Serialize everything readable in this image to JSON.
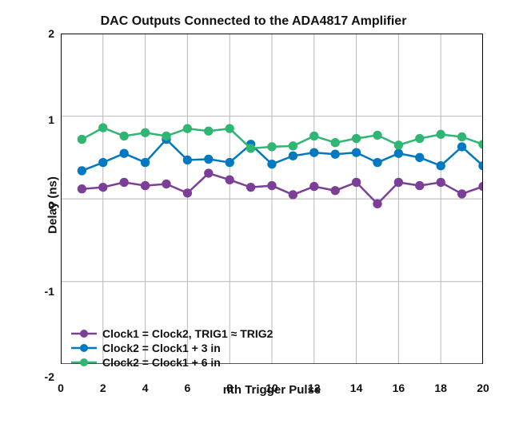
{
  "chart": {
    "type": "line",
    "title": "DAC Outputs Connected to the ADA4817 Amplifier",
    "xlabel": "nth Trigger Pulse",
    "ylabel": "Delay (ns)",
    "title_fontsize": 16,
    "label_fontsize": 15,
    "tick_fontsize": 14,
    "background_color": "#ffffff",
    "grid_color": "#b5b5b5",
    "axis_color": "#000000",
    "xlim": [
      0,
      20
    ],
    "ylim": [
      -2,
      2
    ],
    "xticks": [
      0,
      2,
      4,
      6,
      8,
      10,
      12,
      14,
      16,
      18,
      20
    ],
    "yticks": [
      -2,
      -1,
      0,
      1,
      2
    ],
    "marker_style": "circle",
    "marker_size": 5.2,
    "line_width": 2.6,
    "x": [
      1,
      2,
      3,
      4,
      5,
      6,
      7,
      8,
      9,
      10,
      11,
      12,
      13,
      14,
      15,
      16,
      17,
      18,
      19,
      20
    ],
    "series": [
      {
        "name": "series-purple",
        "label": "Clock1 = Clock2, TRIG1 ≈ TRIG2",
        "color": "#7b3f98",
        "values": [
          0.12,
          0.14,
          0.2,
          0.16,
          0.18,
          0.07,
          0.31,
          0.23,
          0.14,
          0.16,
          0.05,
          0.15,
          0.1,
          0.2,
          -0.06,
          0.2,
          0.16,
          0.2,
          0.06,
          0.15
        ]
      },
      {
        "name": "series-blue",
        "label": "Clock2 = Clock1 + 3 in",
        "color": "#0079c1",
        "values": [
          0.34,
          0.44,
          0.55,
          0.44,
          0.72,
          0.47,
          0.48,
          0.44,
          0.66,
          0.42,
          0.52,
          0.56,
          0.54,
          0.56,
          0.44,
          0.55,
          0.5,
          0.4,
          0.63,
          0.4
        ]
      },
      {
        "name": "series-green",
        "label": "Clock2 = Clock1 + 6 in",
        "color": "#2fb673",
        "values": [
          0.72,
          0.86,
          0.76,
          0.8,
          0.76,
          0.85,
          0.82,
          0.85,
          0.61,
          0.63,
          0.64,
          0.76,
          0.68,
          0.73,
          0.77,
          0.65,
          0.73,
          0.78,
          0.75,
          0.66
        ]
      }
    ],
    "legend_position": "lower-left"
  }
}
